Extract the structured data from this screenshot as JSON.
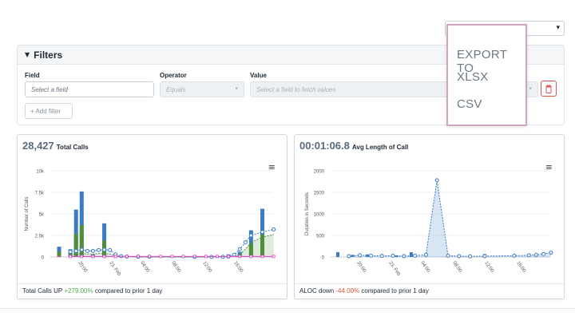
{
  "export_select": {
    "chevron": "chevron-down-icon"
  },
  "export_menu": {
    "title": "EXPORT TO",
    "options": [
      "XLSX",
      "CSV"
    ]
  },
  "filters": {
    "title": "Filters",
    "field": {
      "label": "Field",
      "placeholder": "Select a field"
    },
    "operator": {
      "label": "Operator",
      "placeholder": "Equals"
    },
    "value": {
      "label": "Value",
      "placeholder": "Select a field to fetch values"
    },
    "add_filter": "+ Add filter"
  },
  "calls_card": {
    "value": "28,427",
    "label": "Total Calls",
    "footer_prefix": "Total Calls UP ",
    "footer_change": "+279.00%",
    "footer_suffix": " compared to prior 1 day"
  },
  "aloc_card": {
    "value": "00:01:06.8",
    "label": "Avg Length of Call",
    "footer_prefix": "ALOC down ",
    "footer_change": "-44.00%",
    "footer_suffix": " compared to prior 1 day"
  },
  "colors": {
    "blue": "#3b7dc4",
    "green": "#4f8f3a",
    "pink": "#e040c8",
    "accent_red": "#d9534f"
  },
  "chart_data": [
    {
      "type": "bar",
      "ylabel": "Number of Calls",
      "ylim": [
        0,
        10000
      ],
      "y_ticks": [
        "0",
        "2.5k",
        "5k",
        "7.5k",
        "10k"
      ],
      "x_ticks": [
        "20:00",
        "23. Feb",
        "04:00",
        "08:00",
        "12:00",
        "16:00"
      ],
      "bar_slots": [
        0,
        2,
        3,
        4,
        6,
        8,
        30,
        32,
        34,
        36
      ],
      "series": [
        {
          "values": [
            1200,
            900,
            5500,
            7600,
            300,
            3900,
            300,
            600,
            3100,
            5600
          ]
        },
        {
          "values": [
            600,
            400,
            2700,
            3700,
            150,
            1900,
            150,
            300,
            1500,
            2600
          ]
        },
        {
          "values": [
            100,
            50,
            100,
            150,
            40,
            100,
            50,
            60,
            100,
            120
          ]
        }
      ],
      "trend_slots": [
        2,
        3,
        4,
        5,
        6,
        7,
        8,
        9,
        10,
        11,
        12,
        14,
        16,
        24,
        27,
        29,
        30,
        31,
        32,
        33,
        34,
        36,
        38
      ],
      "trend_blue": [
        600,
        700,
        850,
        700,
        700,
        800,
        850,
        800,
        300,
        100,
        50,
        30,
        20,
        10,
        10,
        20,
        50,
        250,
        900,
        1700,
        2500,
        2900,
        3200
      ],
      "trend_green": [
        300,
        350,
        400,
        350,
        350,
        400,
        400,
        350,
        150,
        50,
        30,
        20,
        10,
        5,
        5,
        10,
        30,
        100,
        300,
        900,
        1700,
        2300,
        2600
      ]
    },
    {
      "type": "area",
      "ylabel": "Duration in Seconds",
      "ylim": [
        0,
        2000
      ],
      "y_ticks": [
        "0",
        "500",
        "1000",
        "1500",
        "2000"
      ],
      "x_ticks": [
        "20:00",
        "23. Feb",
        "04:00",
        "08:00",
        "12:00",
        "16:00"
      ],
      "bars": [
        {
          "slot": 0,
          "value": 110
        },
        {
          "slot": 4,
          "value": 50
        },
        {
          "slot": 8,
          "value": 60
        },
        {
          "slot": 12,
          "value": 50
        },
        {
          "slot": 16,
          "value": 40
        },
        {
          "slot": 20,
          "value": 110
        },
        {
          "slot": 40,
          "value": 70
        }
      ],
      "points_slots": [
        3,
        6,
        9,
        12,
        15,
        18,
        21,
        24,
        27,
        30,
        33,
        36,
        40,
        48,
        52,
        54,
        56,
        58
      ],
      "points_values": [
        20,
        40,
        30,
        25,
        30,
        20,
        30,
        50,
        1780,
        30,
        20,
        15,
        20,
        30,
        40,
        50,
        70,
        100
      ]
    }
  ]
}
